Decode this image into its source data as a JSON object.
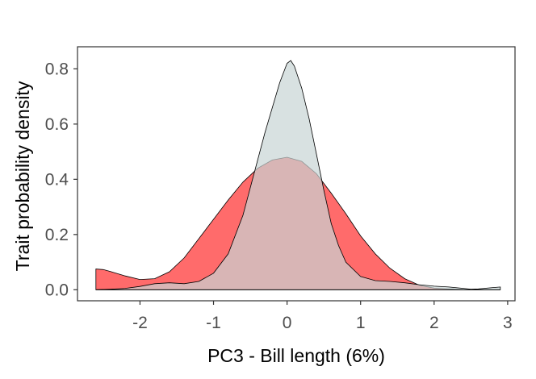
{
  "chart_data": {
    "type": "area",
    "title": "",
    "xlabel": "PC3 - Bill length (6%)",
    "ylabel": "Trait probability density",
    "xlim": [
      -2.85,
      3.1
    ],
    "ylim": [
      -0.04,
      0.88
    ],
    "x_ticks": [
      -2,
      -1,
      0,
      1,
      2,
      3
    ],
    "y_ticks": [
      0.0,
      0.2,
      0.4,
      0.6,
      0.8
    ],
    "x_tick_labels": [
      "-2",
      "-1",
      "0",
      "1",
      "2",
      "3"
    ],
    "y_tick_labels": [
      "0.0",
      "0.2",
      "0.4",
      "0.6",
      "0.8"
    ],
    "grid": false,
    "legend": "none",
    "series": [
      {
        "fill": "#ff6b6b",
        "x": [
          -2.6,
          -2.5,
          -2.4,
          -2.2,
          -2.0,
          -1.8,
          -1.6,
          -1.4,
          -1.2,
          -1.0,
          -0.8,
          -0.6,
          -0.4,
          -0.2,
          0.0,
          0.2,
          0.4,
          0.6,
          0.8,
          1.0,
          1.2,
          1.4,
          1.6,
          1.8,
          2.0,
          2.2,
          2.4,
          2.6,
          2.8,
          2.9
        ],
        "y": [
          0.075,
          0.073,
          0.066,
          0.05,
          0.037,
          0.04,
          0.065,
          0.115,
          0.185,
          0.255,
          0.325,
          0.39,
          0.44,
          0.47,
          0.48,
          0.465,
          0.42,
          0.35,
          0.275,
          0.195,
          0.13,
          0.078,
          0.04,
          0.016,
          0.006,
          0.003,
          0.001,
          0.001,
          0.0,
          0.0
        ]
      },
      {
        "fill": "#c8d4d4",
        "x": [
          -2.6,
          -2.4,
          -2.2,
          -2.0,
          -1.8,
          -1.6,
          -1.4,
          -1.2,
          -1.0,
          -0.8,
          -0.6,
          -0.4,
          -0.3,
          -0.2,
          -0.1,
          0.0,
          0.05,
          0.1,
          0.2,
          0.3,
          0.4,
          0.5,
          0.6,
          0.7,
          0.8,
          1.0,
          1.2,
          1.4,
          1.6,
          1.8,
          2.0,
          2.2,
          2.4,
          2.5,
          2.6,
          2.8,
          2.9
        ],
        "y": [
          0.0,
          0.002,
          0.005,
          0.012,
          0.022,
          0.025,
          0.022,
          0.03,
          0.06,
          0.13,
          0.27,
          0.47,
          0.57,
          0.66,
          0.75,
          0.82,
          0.83,
          0.81,
          0.73,
          0.62,
          0.49,
          0.36,
          0.24,
          0.16,
          0.1,
          0.048,
          0.033,
          0.03,
          0.025,
          0.018,
          0.013,
          0.01,
          0.005,
          0.002,
          0.003,
          0.008,
          0.01
        ]
      }
    ]
  }
}
